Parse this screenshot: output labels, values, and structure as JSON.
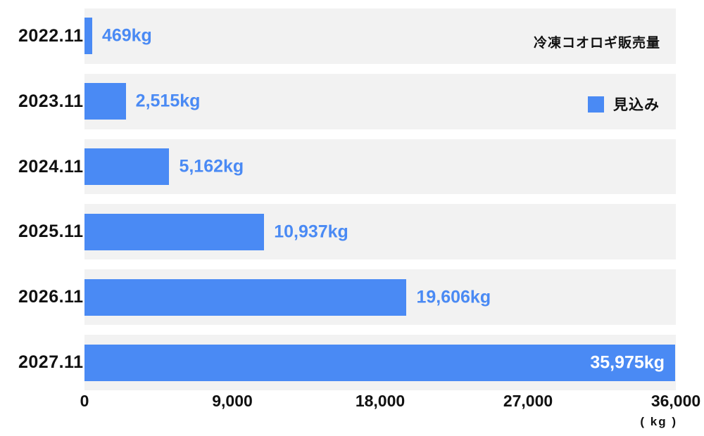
{
  "chart_data": {
    "type": "bar",
    "orientation": "horizontal",
    "title": "冷凍コオロギ販売量",
    "legend": [
      {
        "label": "見込み",
        "color": "#4a8af4"
      }
    ],
    "categories": [
      "2022.11",
      "2023.11",
      "2024.11",
      "2025.11",
      "2026.11",
      "2027.11"
    ],
    "values": [
      469,
      2515,
      5162,
      10937,
      19606,
      35975
    ],
    "value_labels": [
      "469kg",
      "2,515kg",
      "5,162kg",
      "10,937kg",
      "19,606kg",
      "35,975kg"
    ],
    "xlim": [
      0,
      36000
    ],
    "x_ticks": [
      "0",
      "9,000",
      "18,000",
      "27,000",
      "36,000"
    ],
    "x_tick_values": [
      0,
      9000,
      18000,
      27000,
      36000
    ],
    "unit_label": "( kg )",
    "grid": false,
    "legend_position": "upper-right",
    "colors": {
      "bar": "#4a8af4",
      "band_bg": "#f2f2f2",
      "value_text": "#4a8af4",
      "last_value_text": "#ffffff"
    }
  }
}
